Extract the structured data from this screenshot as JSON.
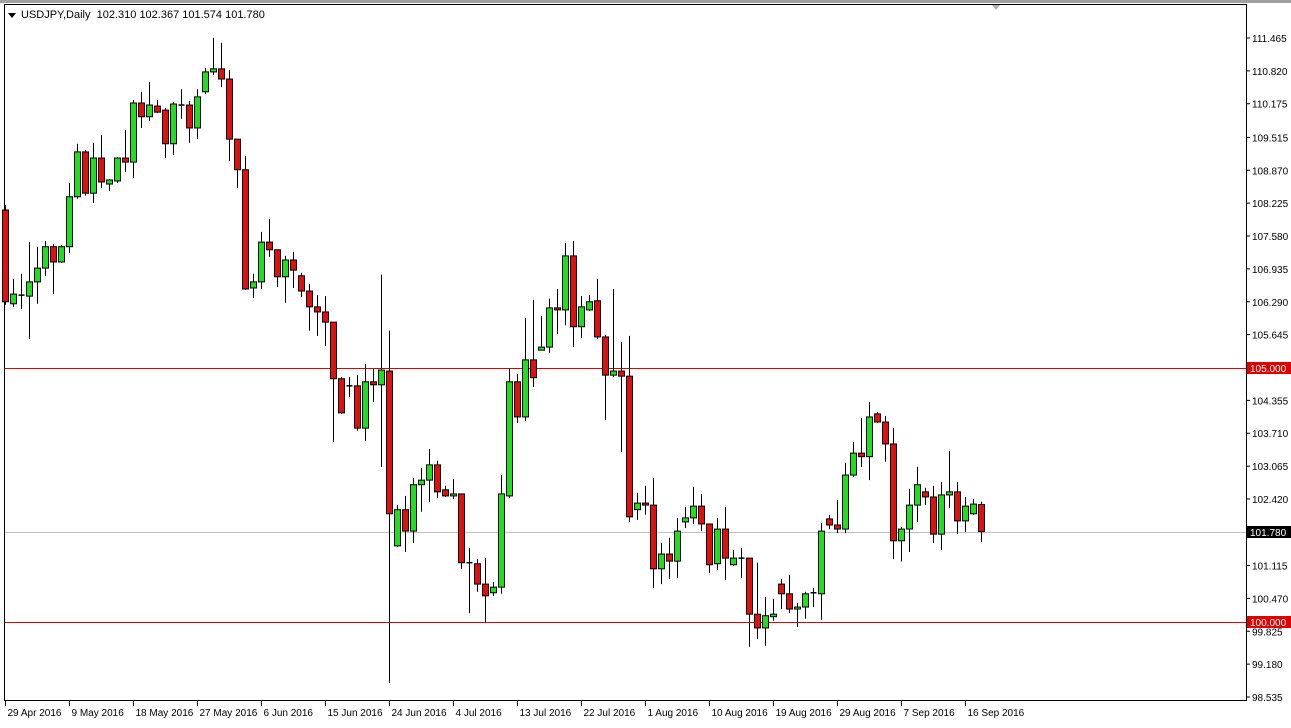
{
  "header": {
    "symbol": "USDJPY,Daily",
    "ohlc_text": "102.310 102.367 101.574 101.780"
  },
  "colors": {
    "bull": "#22dd22",
    "bear": "#dd1111",
    "level_line": "#e00000",
    "current_price_line": "#c0c0c0",
    "axis": "#000000"
  },
  "chart_data": {
    "type": "candlestick",
    "symbol": "USDJPY",
    "timeframe": "Daily",
    "ylim": [
      98.535,
      111.465
    ],
    "y_ticks": [
      "111.465",
      "110.820",
      "110.175",
      "109.515",
      "108.870",
      "108.225",
      "107.580",
      "106.935",
      "106.290",
      "105.645",
      "104.355",
      "103.710",
      "103.065",
      "102.420",
      "101.115",
      "100.470",
      "99.825",
      "99.180",
      "98.535"
    ],
    "x_tick_labels": [
      {
        "bar": 0,
        "label": "29 Apr 2016"
      },
      {
        "bar": 8,
        "label": "9 May 2016"
      },
      {
        "bar": 16,
        "label": "18 May 2016"
      },
      {
        "bar": 24,
        "label": "27 May 2016"
      },
      {
        "bar": 32,
        "label": "6 Jun 2016"
      },
      {
        "bar": 40,
        "label": "15 Jun 2016"
      },
      {
        "bar": 48,
        "label": "24 Jun 2016"
      },
      {
        "bar": 56,
        "label": "4 Jul 2016"
      },
      {
        "bar": 64,
        "label": "13 Jul 2016"
      },
      {
        "bar": 72,
        "label": "22 Jul 2016"
      },
      {
        "bar": 80,
        "label": "1 Aug 2016"
      },
      {
        "bar": 88,
        "label": "10 Aug 2016"
      },
      {
        "bar": 96,
        "label": "19 Aug 2016"
      },
      {
        "bar": 104,
        "label": "29 Aug 2016"
      },
      {
        "bar": 112,
        "label": "7 Sep 2016"
      },
      {
        "bar": 120,
        "label": "16 Sep 2016"
      }
    ],
    "horizontal_lines": [
      {
        "price": 105.0,
        "label": "105.000",
        "color": "#e00000"
      },
      {
        "price": 100.0,
        "label": "100.000",
        "color": "#e00000"
      }
    ],
    "current_price": {
      "price": 101.78,
      "label": "101.780"
    },
    "ohlc": [
      [
        108.09,
        108.19,
        106.23,
        106.29
      ],
      [
        106.25,
        106.74,
        106.19,
        106.44
      ],
      [
        106.42,
        106.84,
        106.15,
        106.42
      ],
      [
        106.4,
        107.46,
        105.56,
        106.68
      ],
      [
        106.68,
        107.37,
        106.25,
        106.95
      ],
      [
        106.95,
        107.48,
        106.8,
        107.37
      ],
      [
        107.37,
        107.42,
        106.44,
        107.07
      ],
      [
        107.07,
        107.4,
        107.05,
        107.37
      ],
      [
        107.37,
        108.62,
        107.25,
        108.35
      ],
      [
        108.35,
        109.39,
        108.31,
        109.23
      ],
      [
        109.23,
        109.27,
        108.37,
        108.42
      ],
      [
        108.42,
        109.41,
        108.23,
        109.11
      ],
      [
        109.11,
        109.56,
        108.52,
        108.64
      ],
      [
        108.6,
        108.7,
        108.46,
        108.68
      ],
      [
        108.66,
        109.13,
        108.62,
        109.11
      ],
      [
        109.11,
        109.66,
        108.84,
        109.03
      ],
      [
        109.03,
        110.25,
        108.72,
        110.19
      ],
      [
        110.19,
        110.41,
        109.7,
        109.92
      ],
      [
        109.92,
        110.6,
        109.84,
        110.15
      ],
      [
        110.13,
        110.25,
        109.99,
        110.01
      ],
      [
        110.05,
        110.09,
        109.11,
        109.39
      ],
      [
        109.39,
        110.21,
        109.17,
        110.17
      ],
      [
        110.15,
        110.46,
        109.88,
        110.15
      ],
      [
        110.15,
        110.23,
        109.41,
        109.7
      ],
      [
        109.7,
        110.46,
        109.48,
        110.31
      ],
      [
        110.41,
        110.88,
        110.37,
        110.8
      ],
      [
        110.8,
        111.47,
        110.74,
        110.86
      ],
      [
        110.86,
        111.37,
        110.5,
        110.66
      ],
      [
        110.66,
        110.84,
        109.05,
        109.48
      ],
      [
        109.48,
        109.48,
        108.52,
        108.88
      ],
      [
        108.88,
        109.15,
        106.52,
        106.54
      ],
      [
        106.56,
        106.84,
        106.36,
        106.68
      ],
      [
        106.68,
        107.66,
        106.54,
        107.46
      ],
      [
        107.46,
        107.91,
        107.17,
        107.31
      ],
      [
        107.31,
        107.31,
        106.58,
        106.78
      ],
      [
        106.78,
        107.19,
        106.27,
        107.11
      ],
      [
        107.11,
        107.27,
        106.56,
        106.91
      ],
      [
        106.8,
        106.86,
        106.38,
        106.5
      ],
      [
        106.5,
        106.64,
        105.72,
        106.19
      ],
      [
        106.19,
        106.42,
        105.62,
        106.09
      ],
      [
        106.09,
        106.4,
        105.42,
        105.89
      ],
      [
        105.89,
        105.89,
        103.54,
        104.78
      ],
      [
        104.78,
        104.81,
        104.09,
        104.11
      ],
      [
        104.64,
        104.81,
        104.42,
        104.64
      ],
      [
        104.64,
        104.85,
        103.76,
        103.81
      ],
      [
        103.81,
        105.07,
        103.56,
        104.72
      ],
      [
        104.72,
        104.97,
        104.32,
        104.66
      ],
      [
        104.66,
        106.82,
        103.05,
        104.95
      ],
      [
        104.93,
        105.72,
        98.81,
        102.13
      ],
      [
        101.5,
        102.3,
        101.48,
        102.21
      ],
      [
        102.21,
        102.48,
        101.38,
        101.79
      ],
      [
        101.79,
        102.83,
        101.56,
        102.7
      ],
      [
        102.7,
        103.03,
        102.17,
        102.79
      ],
      [
        102.79,
        103.4,
        102.36,
        103.09
      ],
      [
        103.09,
        103.17,
        102.44,
        102.56
      ],
      [
        102.6,
        102.68,
        102.46,
        102.48
      ],
      [
        102.48,
        102.81,
        102.42,
        102.52
      ],
      [
        102.52,
        102.52,
        101.05,
        101.17
      ],
      [
        101.17,
        101.46,
        100.18,
        101.17
      ],
      [
        101.15,
        101.24,
        100.6,
        100.75
      ],
      [
        100.75,
        101.26,
        99.99,
        100.52
      ],
      [
        100.58,
        100.79,
        100.52,
        100.69
      ],
      [
        100.69,
        102.89,
        100.56,
        102.52
      ],
      [
        102.48,
        104.99,
        102.44,
        104.72
      ],
      [
        104.72,
        104.87,
        103.91,
        104.03
      ],
      [
        104.03,
        105.97,
        103.95,
        105.15
      ],
      [
        105.15,
        106.33,
        104.62,
        104.8
      ],
      [
        105.34,
        106.01,
        105.34,
        105.4
      ],
      [
        105.4,
        106.35,
        105.29,
        106.17
      ],
      [
        106.17,
        106.54,
        105.66,
        106.13
      ],
      [
        106.13,
        107.44,
        105.83,
        107.19
      ],
      [
        107.19,
        107.48,
        105.4,
        105.8
      ],
      [
        105.8,
        106.4,
        105.58,
        106.19
      ],
      [
        106.13,
        106.42,
        106.11,
        106.29
      ],
      [
        106.31,
        106.74,
        105.56,
        105.6
      ],
      [
        105.6,
        105.64,
        103.97,
        104.85
      ],
      [
        104.85,
        106.54,
        104.81,
        104.93
      ],
      [
        104.93,
        105.5,
        103.34,
        104.83
      ],
      [
        104.83,
        105.62,
        101.97,
        102.07
      ],
      [
        102.21,
        102.54,
        102.01,
        102.34
      ],
      [
        102.34,
        102.68,
        102.11,
        102.3
      ],
      [
        102.3,
        102.83,
        100.67,
        101.05
      ],
      [
        101.05,
        101.56,
        100.75,
        101.34
      ],
      [
        101.34,
        101.66,
        100.85,
        101.2
      ],
      [
        101.2,
        102.05,
        100.87,
        101.79
      ],
      [
        101.97,
        102.26,
        101.85,
        102.05
      ],
      [
        102.05,
        102.66,
        101.93,
        102.28
      ],
      [
        102.28,
        102.52,
        101.79,
        101.93
      ],
      [
        101.93,
        101.93,
        100.97,
        101.13
      ],
      [
        101.15,
        102.05,
        101.03,
        101.83
      ],
      [
        101.83,
        102.26,
        100.83,
        101.26
      ],
      [
        101.13,
        101.42,
        101.11,
        101.26
      ],
      [
        101.26,
        101.46,
        100.87,
        101.26
      ],
      [
        101.26,
        101.26,
        99.52,
        100.16
      ],
      [
        100.16,
        101.17,
        99.67,
        99.89
      ],
      [
        99.89,
        100.5,
        99.54,
        100.13
      ],
      [
        100.11,
        100.46,
        100.03,
        100.16
      ],
      [
        100.75,
        100.85,
        100.26,
        100.56
      ],
      [
        100.56,
        100.93,
        100.18,
        100.26
      ],
      [
        100.26,
        100.38,
        99.91,
        100.3
      ],
      [
        100.3,
        100.6,
        100.07,
        100.56
      ],
      [
        100.58,
        100.67,
        100.3,
        100.58
      ],
      [
        100.56,
        101.95,
        100.05,
        101.79
      ],
      [
        102.03,
        102.11,
        101.83,
        101.91
      ],
      [
        101.91,
        102.4,
        101.75,
        101.83
      ],
      [
        101.83,
        103.13,
        101.75,
        102.89
      ],
      [
        102.89,
        103.54,
        102.85,
        103.32
      ],
      [
        103.32,
        104.01,
        103.05,
        103.25
      ],
      [
        103.25,
        104.32,
        102.79,
        104.03
      ],
      [
        104.09,
        104.13,
        103.91,
        103.93
      ],
      [
        103.93,
        104.05,
        103.15,
        103.5
      ],
      [
        103.5,
        103.81,
        101.24,
        101.6
      ],
      [
        101.6,
        101.87,
        101.19,
        101.83
      ],
      [
        101.83,
        102.62,
        101.38,
        102.3
      ],
      [
        102.3,
        103.05,
        101.97,
        102.7
      ],
      [
        102.56,
        102.64,
        102.3,
        102.46
      ],
      [
        102.46,
        102.68,
        101.56,
        101.73
      ],
      [
        101.73,
        102.75,
        101.42,
        102.5
      ],
      [
        102.5,
        103.36,
        102.24,
        102.56
      ],
      [
        102.56,
        102.75,
        101.73,
        101.99
      ],
      [
        101.99,
        102.46,
        101.77,
        102.28
      ],
      [
        102.13,
        102.42,
        102.11,
        102.32
      ],
      [
        102.31,
        102.367,
        101.574,
        101.78
      ]
    ]
  }
}
